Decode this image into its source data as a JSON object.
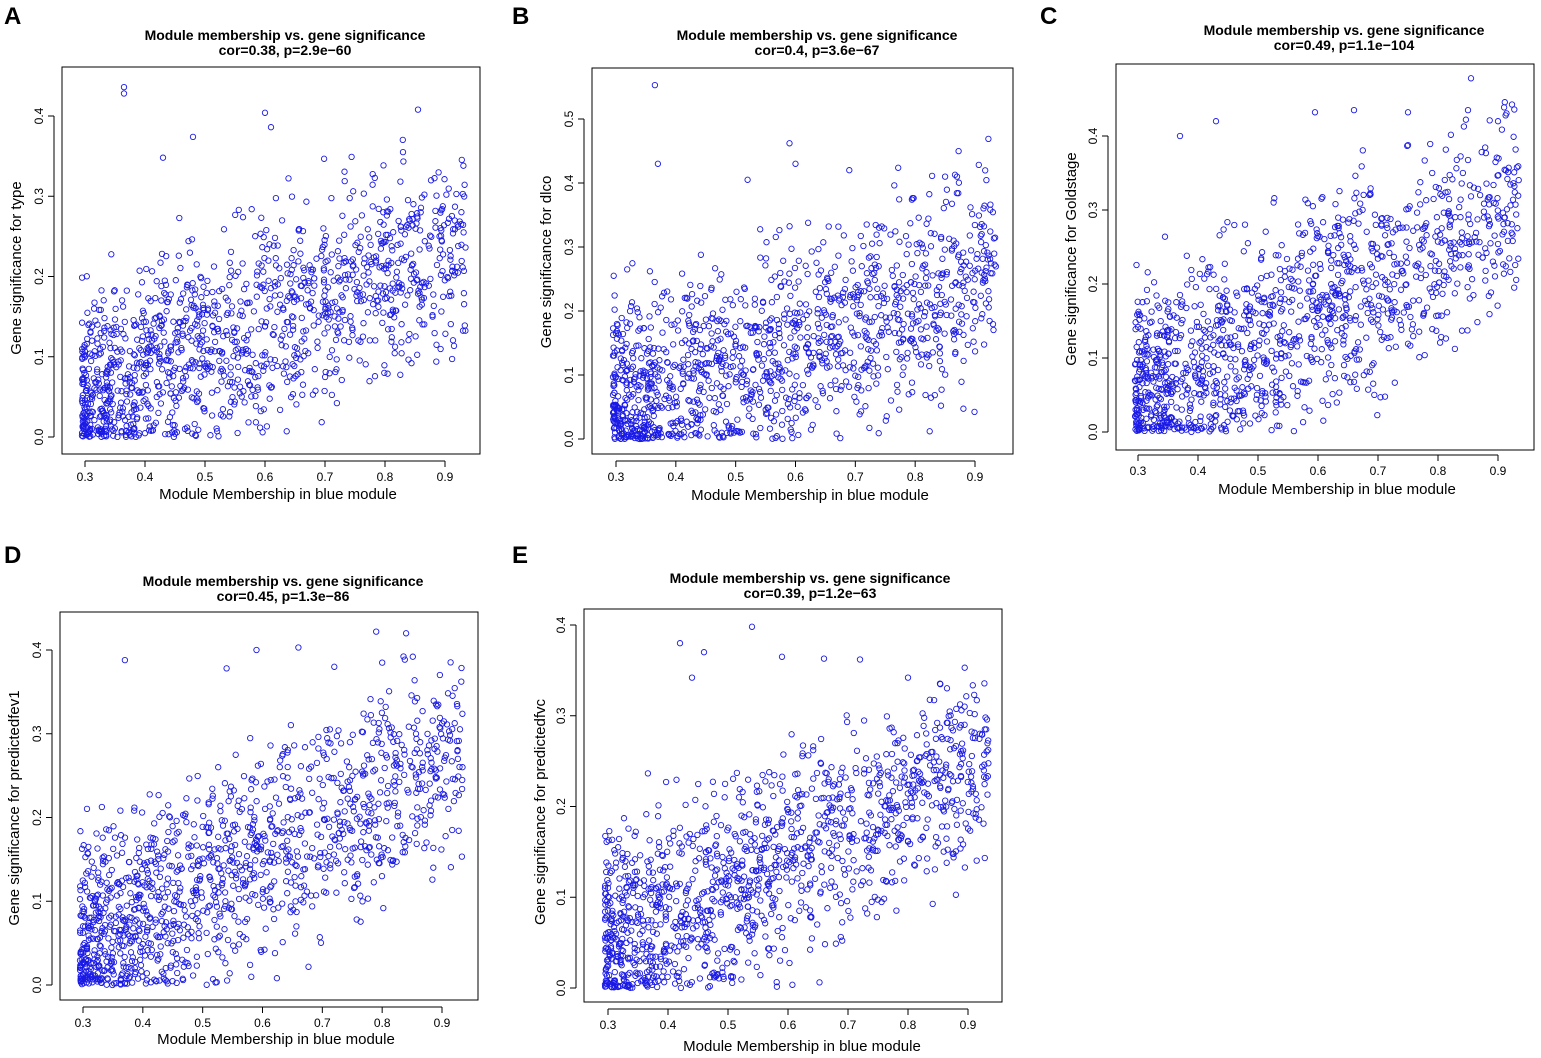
{
  "figure": {
    "panel_count": 5,
    "point_color": "#1a1ae6"
  },
  "chart_data": [
    {
      "type": "scatter",
      "panel": "A",
      "title": "Module membership vs. gene significance",
      "subtitle": "cor=0.38, p=2.9e−60",
      "xlabel": "Module Membership in blue module",
      "ylabel": "Gene significance for type",
      "xlim": [
        0.28,
        0.95
      ],
      "ylim": [
        -0.01,
        0.445
      ],
      "xticks": [
        0.3,
        0.4,
        0.5,
        0.6,
        0.7,
        0.8,
        0.9
      ],
      "yticks": [
        0.0,
        0.1,
        0.2,
        0.3,
        0.4
      ],
      "xtick_labels": [
        "0.3",
        "0.4",
        "0.5",
        "0.6",
        "0.7",
        "0.8",
        "0.9"
      ],
      "ytick_labels": [
        "0.0",
        "0.1",
        "0.2",
        "0.3",
        "0.4"
      ],
      "cor": 0.38,
      "n_points": 1300,
      "outliers": [
        [
          0.365,
          0.436
        ],
        [
          0.365,
          0.428
        ],
        [
          0.6,
          0.404
        ],
        [
          0.855,
          0.408
        ],
        [
          0.61,
          0.386
        ],
        [
          0.48,
          0.374
        ],
        [
          0.43,
          0.348
        ],
        [
          0.83,
          0.355
        ]
      ]
    },
    {
      "type": "scatter",
      "panel": "B",
      "title": "Module membership vs. gene significance",
      "subtitle": "cor=0.4, p=3.6e−67",
      "xlabel": "Module Membership in blue module",
      "ylabel": "Gene significance for dlco",
      "xlim": [
        0.28,
        0.95
      ],
      "ylim": [
        -0.01,
        0.565
      ],
      "xticks": [
        0.3,
        0.4,
        0.5,
        0.6,
        0.7,
        0.8,
        0.9
      ],
      "yticks": [
        0.0,
        0.1,
        0.2,
        0.3,
        0.4,
        0.5
      ],
      "xtick_labels": [
        "0.3",
        "0.4",
        "0.5",
        "0.6",
        "0.7",
        "0.8",
        "0.9"
      ],
      "ytick_labels": [
        "0.0",
        "0.1",
        "0.2",
        "0.3",
        "0.4",
        "0.5"
      ],
      "cor": 0.4,
      "n_points": 1300,
      "outliers": [
        [
          0.365,
          0.553
        ],
        [
          0.59,
          0.462
        ],
        [
          0.37,
          0.43
        ],
        [
          0.6,
          0.43
        ],
        [
          0.69,
          0.42
        ],
        [
          0.52,
          0.405
        ],
        [
          0.85,
          0.41
        ],
        [
          0.87,
          0.41
        ]
      ]
    },
    {
      "type": "scatter",
      "panel": "C",
      "title": "Module membership vs. gene significance",
      "subtitle": "cor=0.49, p=1.1e−104",
      "xlabel": "Module Membership in blue module",
      "ylabel": "Gene significance for Goldstage",
      "xlim": [
        0.28,
        0.95
      ],
      "ylim": [
        -0.01,
        0.49
      ],
      "xticks": [
        0.3,
        0.4,
        0.5,
        0.6,
        0.7,
        0.8,
        0.9
      ],
      "yticks": [
        0.0,
        0.1,
        0.2,
        0.3,
        0.4
      ],
      "xtick_labels": [
        "0.3",
        "0.4",
        "0.5",
        "0.6",
        "0.7",
        "0.8",
        "0.9"
      ],
      "ytick_labels": [
        "0.0",
        "0.1",
        "0.2",
        "0.3",
        "0.4"
      ],
      "cor": 0.49,
      "n_points": 1300,
      "outliers": [
        [
          0.855,
          0.478
        ],
        [
          0.66,
          0.435
        ],
        [
          0.595,
          0.432
        ],
        [
          0.75,
          0.432
        ],
        [
          0.85,
          0.435
        ],
        [
          0.43,
          0.42
        ],
        [
          0.9,
          0.42
        ],
        [
          0.37,
          0.4
        ]
      ]
    },
    {
      "type": "scatter",
      "panel": "D",
      "title": "Module membership vs. gene significance",
      "subtitle": "cor=0.45, p=1.3e−86",
      "xlabel": "Module Membership in blue module",
      "ylabel": "Gene significance for predictedfev1",
      "xlim": [
        0.28,
        0.95
      ],
      "ylim": [
        -0.01,
        0.435
      ],
      "xticks": [
        0.3,
        0.4,
        0.5,
        0.6,
        0.7,
        0.8,
        0.9
      ],
      "yticks": [
        0.0,
        0.1,
        0.2,
        0.3,
        0.4
      ],
      "xtick_labels": [
        "0.3",
        "0.4",
        "0.5",
        "0.6",
        "0.7",
        "0.8",
        "0.9"
      ],
      "ytick_labels": [
        "0.0",
        "0.1",
        "0.2",
        "0.3",
        "0.4"
      ],
      "cor": 0.45,
      "n_points": 1300,
      "outliers": [
        [
          0.79,
          0.422
        ],
        [
          0.84,
          0.42
        ],
        [
          0.59,
          0.4
        ],
        [
          0.66,
          0.403
        ],
        [
          0.37,
          0.388
        ],
        [
          0.8,
          0.385
        ],
        [
          0.54,
          0.378
        ],
        [
          0.72,
          0.38
        ]
      ]
    },
    {
      "type": "scatter",
      "panel": "E",
      "title": "Module membership vs. gene significance",
      "subtitle": "cor=0.39, p=1.2e−63",
      "xlabel": "Module Membership in blue module",
      "ylabel": "Gene significance for predictedfvc",
      "xlim": [
        0.28,
        0.95
      ],
      "ylim": [
        -0.01,
        0.41
      ],
      "xticks": [
        0.3,
        0.4,
        0.5,
        0.6,
        0.7,
        0.8,
        0.9
      ],
      "yticks": [
        0.0,
        0.1,
        0.2,
        0.3,
        0.4
      ],
      "xtick_labels": [
        "0.3",
        "0.4",
        "0.5",
        "0.6",
        "0.7",
        "0.8",
        "0.9"
      ],
      "ytick_labels": [
        "0.0",
        "0.1",
        "0.2",
        "0.3",
        "0.4"
      ],
      "cor": 0.39,
      "n_points": 1300,
      "outliers": [
        [
          0.54,
          0.398
        ],
        [
          0.42,
          0.38
        ],
        [
          0.46,
          0.37
        ],
        [
          0.59,
          0.365
        ],
        [
          0.66,
          0.363
        ],
        [
          0.72,
          0.362
        ],
        [
          0.8,
          0.342
        ],
        [
          0.44,
          0.342
        ]
      ]
    }
  ]
}
